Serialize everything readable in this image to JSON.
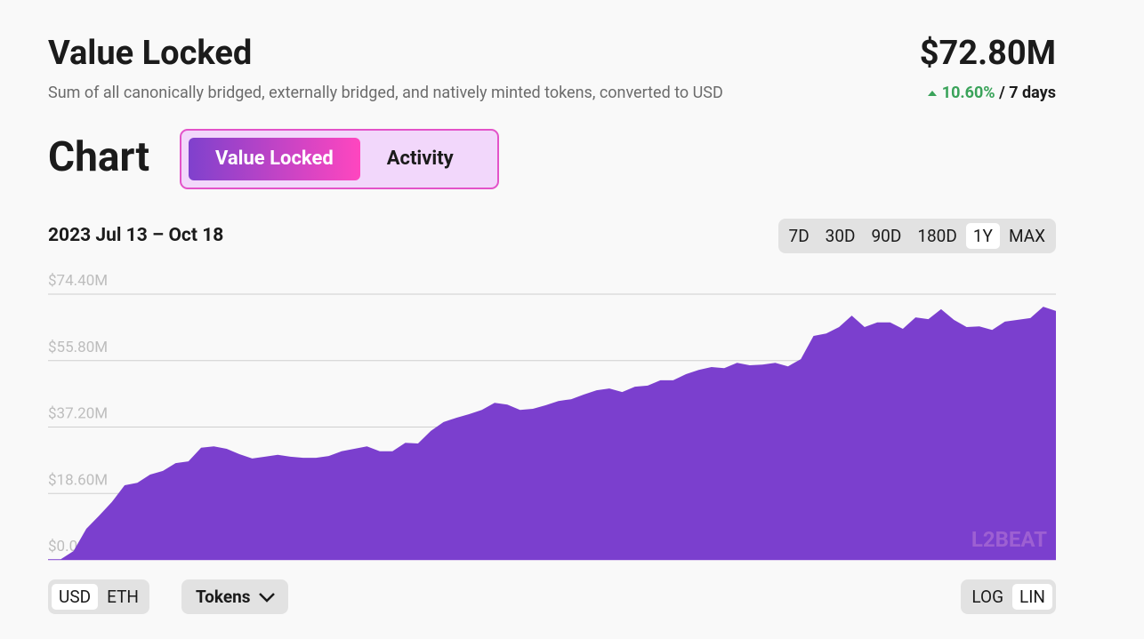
{
  "header": {
    "title": "Value Locked",
    "subtitle": "Sum of all canonically bridged, externally bridged, and natively minted tokens, converted to USD",
    "value": "$72.80M",
    "change": "10.60%",
    "period": "/ 7 days"
  },
  "tabs": {
    "title": "Chart",
    "options": [
      "Value Locked",
      "Activity"
    ],
    "selected": 0
  },
  "range_label": "2023 Jul 13 – Oct 18",
  "range_options": {
    "options": [
      "7D",
      "30D",
      "90D",
      "180D",
      "1Y",
      "MAX"
    ],
    "selected": 4
  },
  "currency": {
    "options": [
      "USD",
      "ETH"
    ],
    "selected": 0
  },
  "tokens_button": "Tokens",
  "scale": {
    "options": [
      "LOG",
      "LIN"
    ],
    "selected": 1
  },
  "chart_data": {
    "type": "area",
    "color": "#7b3fce",
    "watermark": "L2BEAT",
    "values": [
      0.2,
      0.2,
      2.5,
      8.7,
      12.4,
      16.2,
      20.9,
      21.6,
      23.9,
      24.9,
      27.1,
      27.6,
      31.4,
      31.8,
      31.1,
      29.6,
      28.4,
      28.9,
      29.4,
      28.9,
      28.6,
      28.6,
      29.1,
      30.4,
      31.1,
      31.8,
      30.4,
      30.4,
      32.8,
      32.6,
      36.1,
      38.6,
      39.8,
      40.8,
      42.0,
      44.0,
      43.5,
      42.0,
      42.3,
      43.3,
      44.5,
      45.0,
      46.3,
      47.5,
      48.0,
      47.0,
      48.5,
      48.8,
      50.3,
      50.3,
      52.0,
      53.2,
      54.0,
      53.7,
      55.2,
      54.5,
      54.7,
      55.2,
      54.2,
      56.2,
      62.7,
      63.4,
      65.2,
      68.4,
      65.2,
      66.5,
      66.5,
      64.7,
      67.9,
      67.4,
      70.2,
      67.2,
      65.2,
      65.4,
      64.4,
      66.7,
      67.2,
      67.7,
      70.9,
      69.7
    ],
    "ylim": [
      0,
      74.4
    ],
    "yticks": [
      {
        "value": 0,
        "label": "$0.00"
      },
      {
        "value": 18.6,
        "label": "$18.60M"
      },
      {
        "value": 37.2,
        "label": "$37.20M"
      },
      {
        "value": 55.8,
        "label": "$55.80M"
      },
      {
        "value": 74.4,
        "label": "$74.40M"
      }
    ],
    "grid": true
  }
}
